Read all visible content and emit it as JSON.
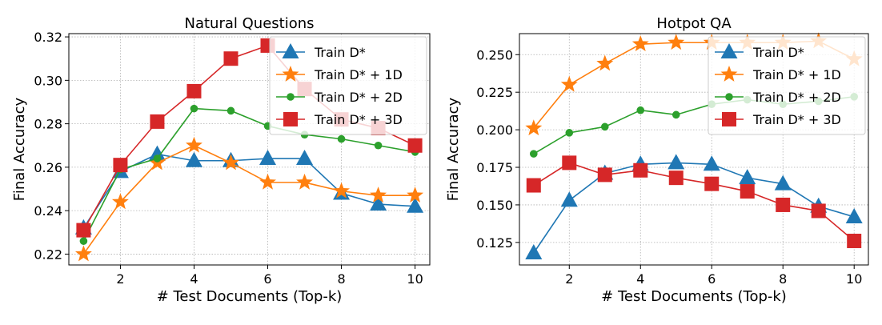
{
  "chart_data": [
    {
      "type": "line",
      "title": "Natural Questions",
      "xlabel": "# Test Documents (Top-k)",
      "ylabel": "Final Accuracy",
      "xlim": [
        0.6,
        10.4
      ],
      "ylim": [
        0.215,
        0.3215
      ],
      "xticks": [
        2,
        4,
        6,
        8,
        10
      ],
      "yticks": [
        0.22,
        0.24,
        0.26,
        0.28,
        0.3,
        0.32
      ],
      "ytick_labels": [
        "0.22",
        "0.24",
        "0.26",
        "0.28",
        "0.30",
        "0.32"
      ],
      "grid": true,
      "legend_position": "top-right",
      "x": [
        1,
        2,
        3,
        4,
        5,
        6,
        7,
        8,
        9,
        10
      ],
      "series": [
        {
          "name": "Train D*",
          "color": "#1f77b4",
          "marker": "triangle",
          "values": [
            0.232,
            0.258,
            0.266,
            0.263,
            0.263,
            0.264,
            0.264,
            0.248,
            0.243,
            0.242
          ]
        },
        {
          "name": "Train D* + 1D",
          "color": "#ff7f0e",
          "marker": "star",
          "values": [
            0.22,
            0.244,
            0.262,
            0.27,
            0.262,
            0.253,
            0.253,
            0.249,
            0.247,
            0.247
          ]
        },
        {
          "name": "Train D* + 2D",
          "color": "#2ca02c",
          "marker": "circle",
          "values": [
            0.226,
            0.259,
            0.264,
            0.287,
            0.286,
            0.279,
            0.275,
            0.273,
            0.27,
            0.267
          ]
        },
        {
          "name": "Train D* + 3D",
          "color": "#d62728",
          "marker": "square",
          "values": [
            0.231,
            0.261,
            0.281,
            0.295,
            0.31,
            0.316,
            0.296,
            0.282,
            0.278,
            0.27
          ]
        }
      ]
    },
    {
      "type": "line",
      "title": "Hotpot QA",
      "xlabel": "# Test Documents (Top-k)",
      "ylabel": "Final Accuracy",
      "xlim": [
        0.6,
        10.4
      ],
      "ylim": [
        0.11,
        0.264
      ],
      "xticks": [
        2,
        4,
        6,
        8,
        10
      ],
      "yticks": [
        0.125,
        0.15,
        0.175,
        0.2,
        0.225,
        0.25
      ],
      "ytick_labels": [
        "0.125",
        "0.150",
        "0.175",
        "0.200",
        "0.225",
        "0.250"
      ],
      "grid": true,
      "legend_position": "top-right",
      "x": [
        1,
        2,
        3,
        4,
        5,
        6,
        7,
        8,
        9,
        10
      ],
      "series": [
        {
          "name": "Train D*",
          "color": "#1f77b4",
          "marker": "triangle",
          "values": [
            0.118,
            0.153,
            0.171,
            0.177,
            0.178,
            0.177,
            0.168,
            0.164,
            0.149,
            0.142
          ]
        },
        {
          "name": "Train D* + 1D",
          "color": "#ff7f0e",
          "marker": "star",
          "values": [
            0.201,
            0.23,
            0.244,
            0.257,
            0.258,
            0.258,
            0.258,
            0.258,
            0.259,
            0.247
          ]
        },
        {
          "name": "Train D* + 2D",
          "color": "#2ca02c",
          "marker": "circle",
          "values": [
            0.184,
            0.198,
            0.202,
            0.213,
            0.21,
            0.217,
            0.22,
            0.217,
            0.219,
            0.222
          ]
        },
        {
          "name": "Train D* + 3D",
          "color": "#d62728",
          "marker": "square",
          "values": [
            0.163,
            0.178,
            0.17,
            0.173,
            0.168,
            0.164,
            0.159,
            0.15,
            0.146,
            0.126
          ]
        }
      ]
    }
  ]
}
